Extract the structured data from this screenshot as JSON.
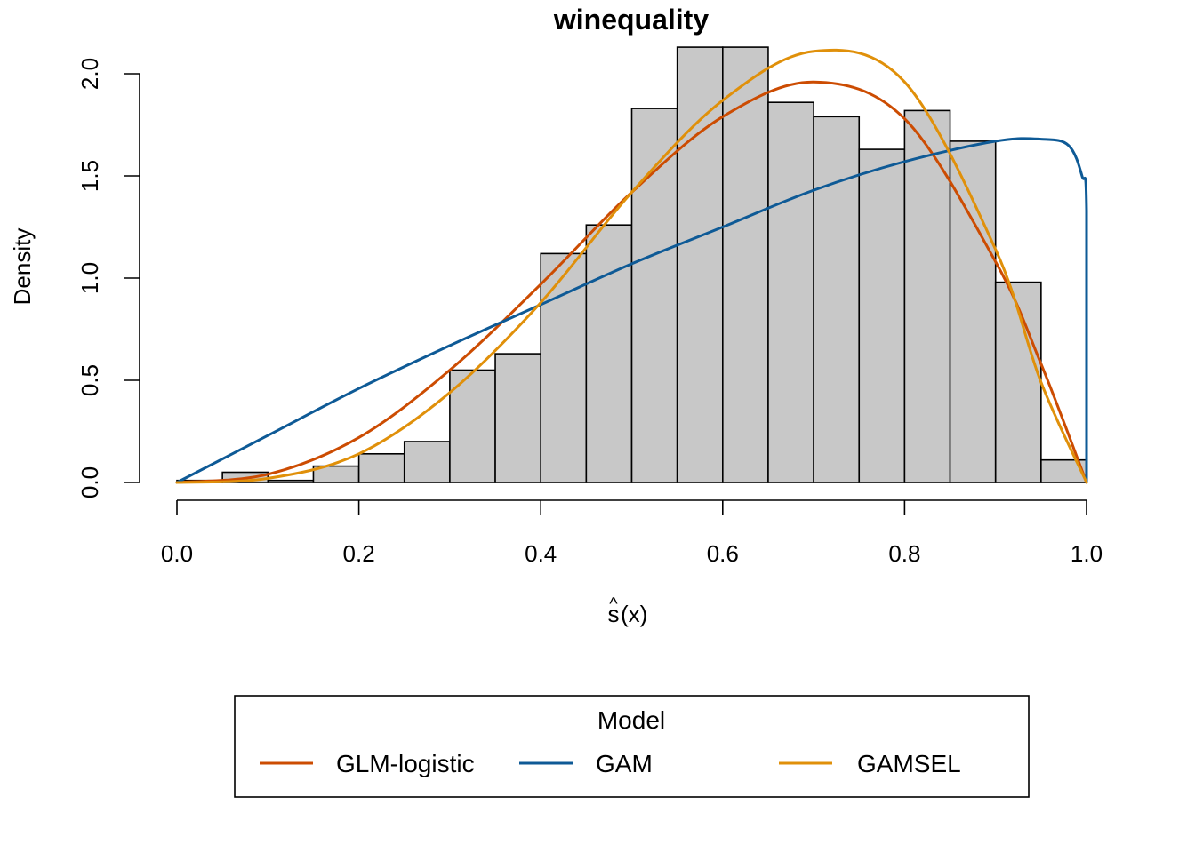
{
  "chart_data": {
    "type": "histogram",
    "title": "winequality",
    "xlabel_base": "s",
    "xlabel_hat": "^",
    "xlabel_rest": "(x)",
    "ylabel": "Density",
    "xlim": [
      0,
      1
    ],
    "ylim": [
      0,
      2.1
    ],
    "x_ticks": [
      "0.0",
      "0.2",
      "0.4",
      "0.6",
      "0.8",
      "1.0"
    ],
    "x_tick_values": [
      0,
      0.2,
      0.4,
      0.6,
      0.8,
      1.0
    ],
    "y_ticks": [
      "0.0",
      "0.5",
      "1.0",
      "1.5",
      "2.0"
    ],
    "y_tick_values": [
      0,
      0.5,
      1.0,
      1.5,
      2.0
    ],
    "bins": {
      "breaks": [
        0.0,
        0.05,
        0.1,
        0.15,
        0.2,
        0.25,
        0.3,
        0.35,
        0.4,
        0.45,
        0.5,
        0.55,
        0.6,
        0.65,
        0.7,
        0.75,
        0.8,
        0.85,
        0.9,
        0.95,
        1.0
      ],
      "density": [
        0.01,
        0.05,
        0.01,
        0.08,
        0.14,
        0.2,
        0.55,
        0.63,
        1.12,
        1.26,
        1.83,
        2.13,
        2.13,
        1.86,
        1.79,
        1.63,
        1.82,
        1.67,
        0.98,
        0.11
      ]
    },
    "series": [
      {
        "name": "GLM-logistic",
        "color": "#cc4c02",
        "x": [
          0.0,
          0.1,
          0.2,
          0.3,
          0.4,
          0.5,
          0.6,
          0.7,
          0.8,
          0.9,
          0.95,
          1.0
        ],
        "y": [
          0.0,
          0.04,
          0.22,
          0.55,
          0.97,
          1.42,
          1.79,
          1.96,
          1.78,
          1.08,
          0.58,
          0.0
        ]
      },
      {
        "name": "GAM",
        "color": "#0e5a96",
        "x": [
          0.0,
          0.1,
          0.2,
          0.3,
          0.4,
          0.5,
          0.6,
          0.7,
          0.8,
          0.9,
          0.95,
          0.98,
          0.995,
          1.0,
          1.0
        ],
        "y": [
          0.0,
          0.23,
          0.46,
          0.67,
          0.87,
          1.07,
          1.25,
          1.43,
          1.57,
          1.67,
          1.68,
          1.65,
          1.5,
          1.33,
          0.0
        ]
      },
      {
        "name": "GAMSEL",
        "color": "#e0900a",
        "x": [
          0.0,
          0.1,
          0.2,
          0.3,
          0.4,
          0.5,
          0.6,
          0.7,
          0.8,
          0.9,
          0.95,
          1.0
        ],
        "y": [
          0.0,
          0.02,
          0.14,
          0.44,
          0.88,
          1.42,
          1.87,
          2.11,
          1.96,
          1.14,
          0.49,
          0.0
        ]
      }
    ],
    "legend": {
      "title": "Model",
      "position": "bottom",
      "entries": [
        "GLM-logistic",
        "GAM",
        "GAMSEL"
      ]
    }
  }
}
